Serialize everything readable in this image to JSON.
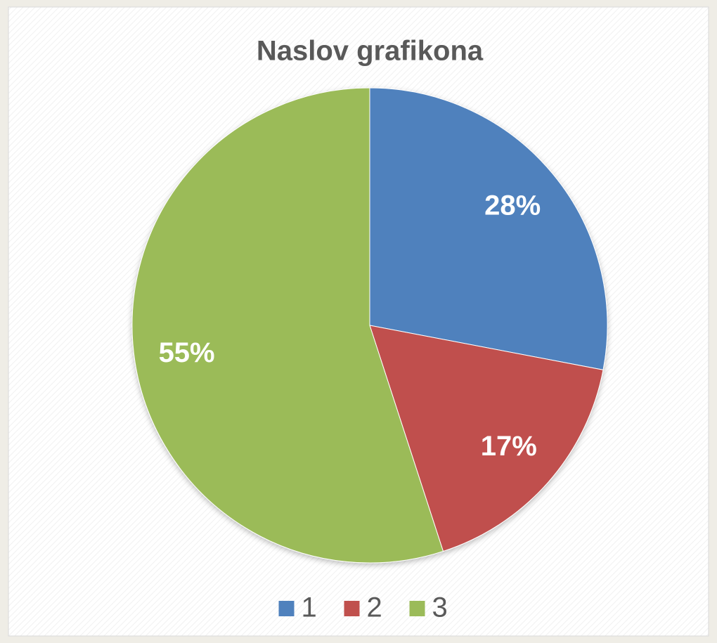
{
  "chart_data": {
    "type": "pie",
    "title": "Naslov grafikona",
    "categories": [
      "1",
      "2",
      "3"
    ],
    "values": [
      28,
      17,
      55
    ],
    "value_labels": [
      "28%",
      "17%",
      "55%"
    ],
    "colors": [
      "#4f81bd",
      "#c0504d",
      "#9bbb59"
    ],
    "legend": "bottom"
  }
}
